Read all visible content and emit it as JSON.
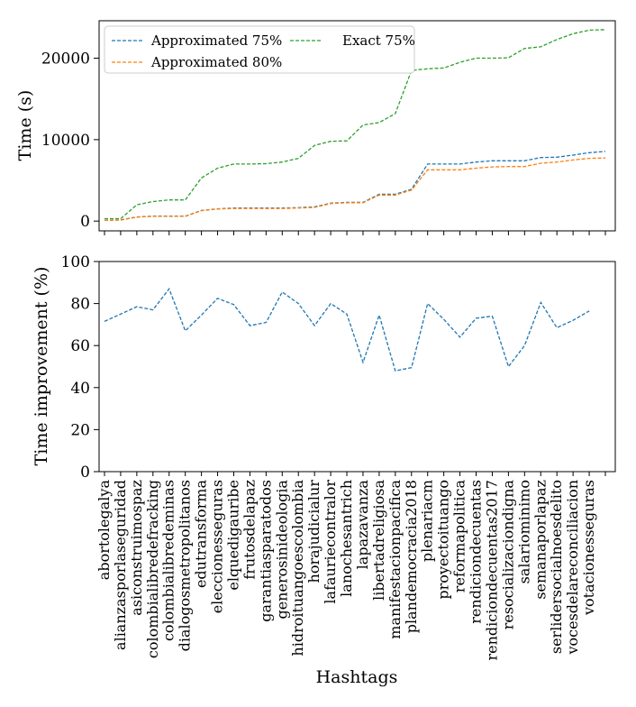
{
  "chart_data": [
    {
      "type": "line",
      "title": "",
      "xlabel": "",
      "ylabel": "Time (s)",
      "ylim": [
        -1200,
        24600
      ],
      "yticks": [
        0,
        10000,
        20000
      ],
      "ytick_labels": [
        "0",
        "10000",
        "20000"
      ],
      "legend_position": "top-left",
      "grid": false,
      "series": [
        {
          "name": "Approximated 75%",
          "color": "#1f77b4",
          "values": [
            100,
            150,
            500,
            600,
            600,
            600,
            1300,
            1500,
            1600,
            1600,
            1600,
            1600,
            1650,
            1750,
            2200,
            2300,
            2300,
            3300,
            3300,
            3900,
            7000,
            7000,
            7000,
            7250,
            7400,
            7400,
            7400,
            7800,
            7850,
            8100,
            8400,
            8550
          ]
        },
        {
          "name": "Approximated 80%",
          "color": "#ff7f0e",
          "values": [
            100,
            120,
            480,
            580,
            580,
            580,
            1280,
            1480,
            1550,
            1550,
            1550,
            1550,
            1600,
            1680,
            2150,
            2250,
            2250,
            3200,
            3200,
            3800,
            6300,
            6300,
            6300,
            6500,
            6650,
            6700,
            6700,
            7100,
            7250,
            7500,
            7700,
            7750
          ]
        },
        {
          "name": "Exact 75%",
          "color": "#2ca02c",
          "values": [
            300,
            300,
            2000,
            2400,
            2600,
            2600,
            5300,
            6500,
            7000,
            7000,
            7050,
            7250,
            7700,
            9300,
            9800,
            9850,
            11800,
            12100,
            13200,
            18500,
            18700,
            18800,
            19500,
            20000,
            20000,
            20050,
            21200,
            21400,
            22300,
            23000,
            23450,
            23500
          ]
        }
      ]
    },
    {
      "type": "line",
      "title": "",
      "xlabel": "Hashtags",
      "ylabel": "Time improvement (%)",
      "ylim": [
        0,
        100
      ],
      "yticks": [
        0,
        20,
        40,
        60,
        80,
        100
      ],
      "ytick_labels": [
        "0",
        "20",
        "40",
        "60",
        "80",
        "100"
      ],
      "grid": false,
      "categories": [
        "abortolegalya",
        "alianzasporlaseguridad",
        "asiconstruimospaz",
        "colombialibredefracking",
        "colombialibredeminas",
        "dialogosmetropolitanos",
        "edutransforma",
        "eleccionesseguras",
        "elquedigauribe",
        "frutosdelapaz",
        "garantiasparatodos",
        "generosinideologia",
        "hidroituangoescolombia",
        "horajudicialur",
        "lafauriecontralor",
        "lanochesantrich",
        "lapazavanza",
        "libertadreligiosa",
        "manifestacionpacifica",
        "plandemocracia2018",
        "plenariacm",
        "proyectoituango",
        "reformapolitica",
        "rendiciondecuentas",
        "rendiciondecuentas2017",
        "resocializaciondigna",
        "salariominimo",
        "semanaporlapaz",
        "serlidersocialnoesdelito",
        "vocesdelareconciliacion",
        "votacionesseguras"
      ],
      "series": [
        {
          "name": "Time improvement",
          "color": "#1f77b4",
          "values": [
            71.5,
            75,
            78.5,
            77,
            87,
            67,
            74.5,
            82.5,
            79.5,
            69.5,
            71,
            85.5,
            80,
            69.5,
            80,
            75,
            52,
            74.5,
            48,
            49.5,
            80,
            72.5,
            64,
            73,
            74,
            50,
            60,
            80.5,
            68.5,
            72,
            76.5
          ]
        }
      ]
    }
  ]
}
